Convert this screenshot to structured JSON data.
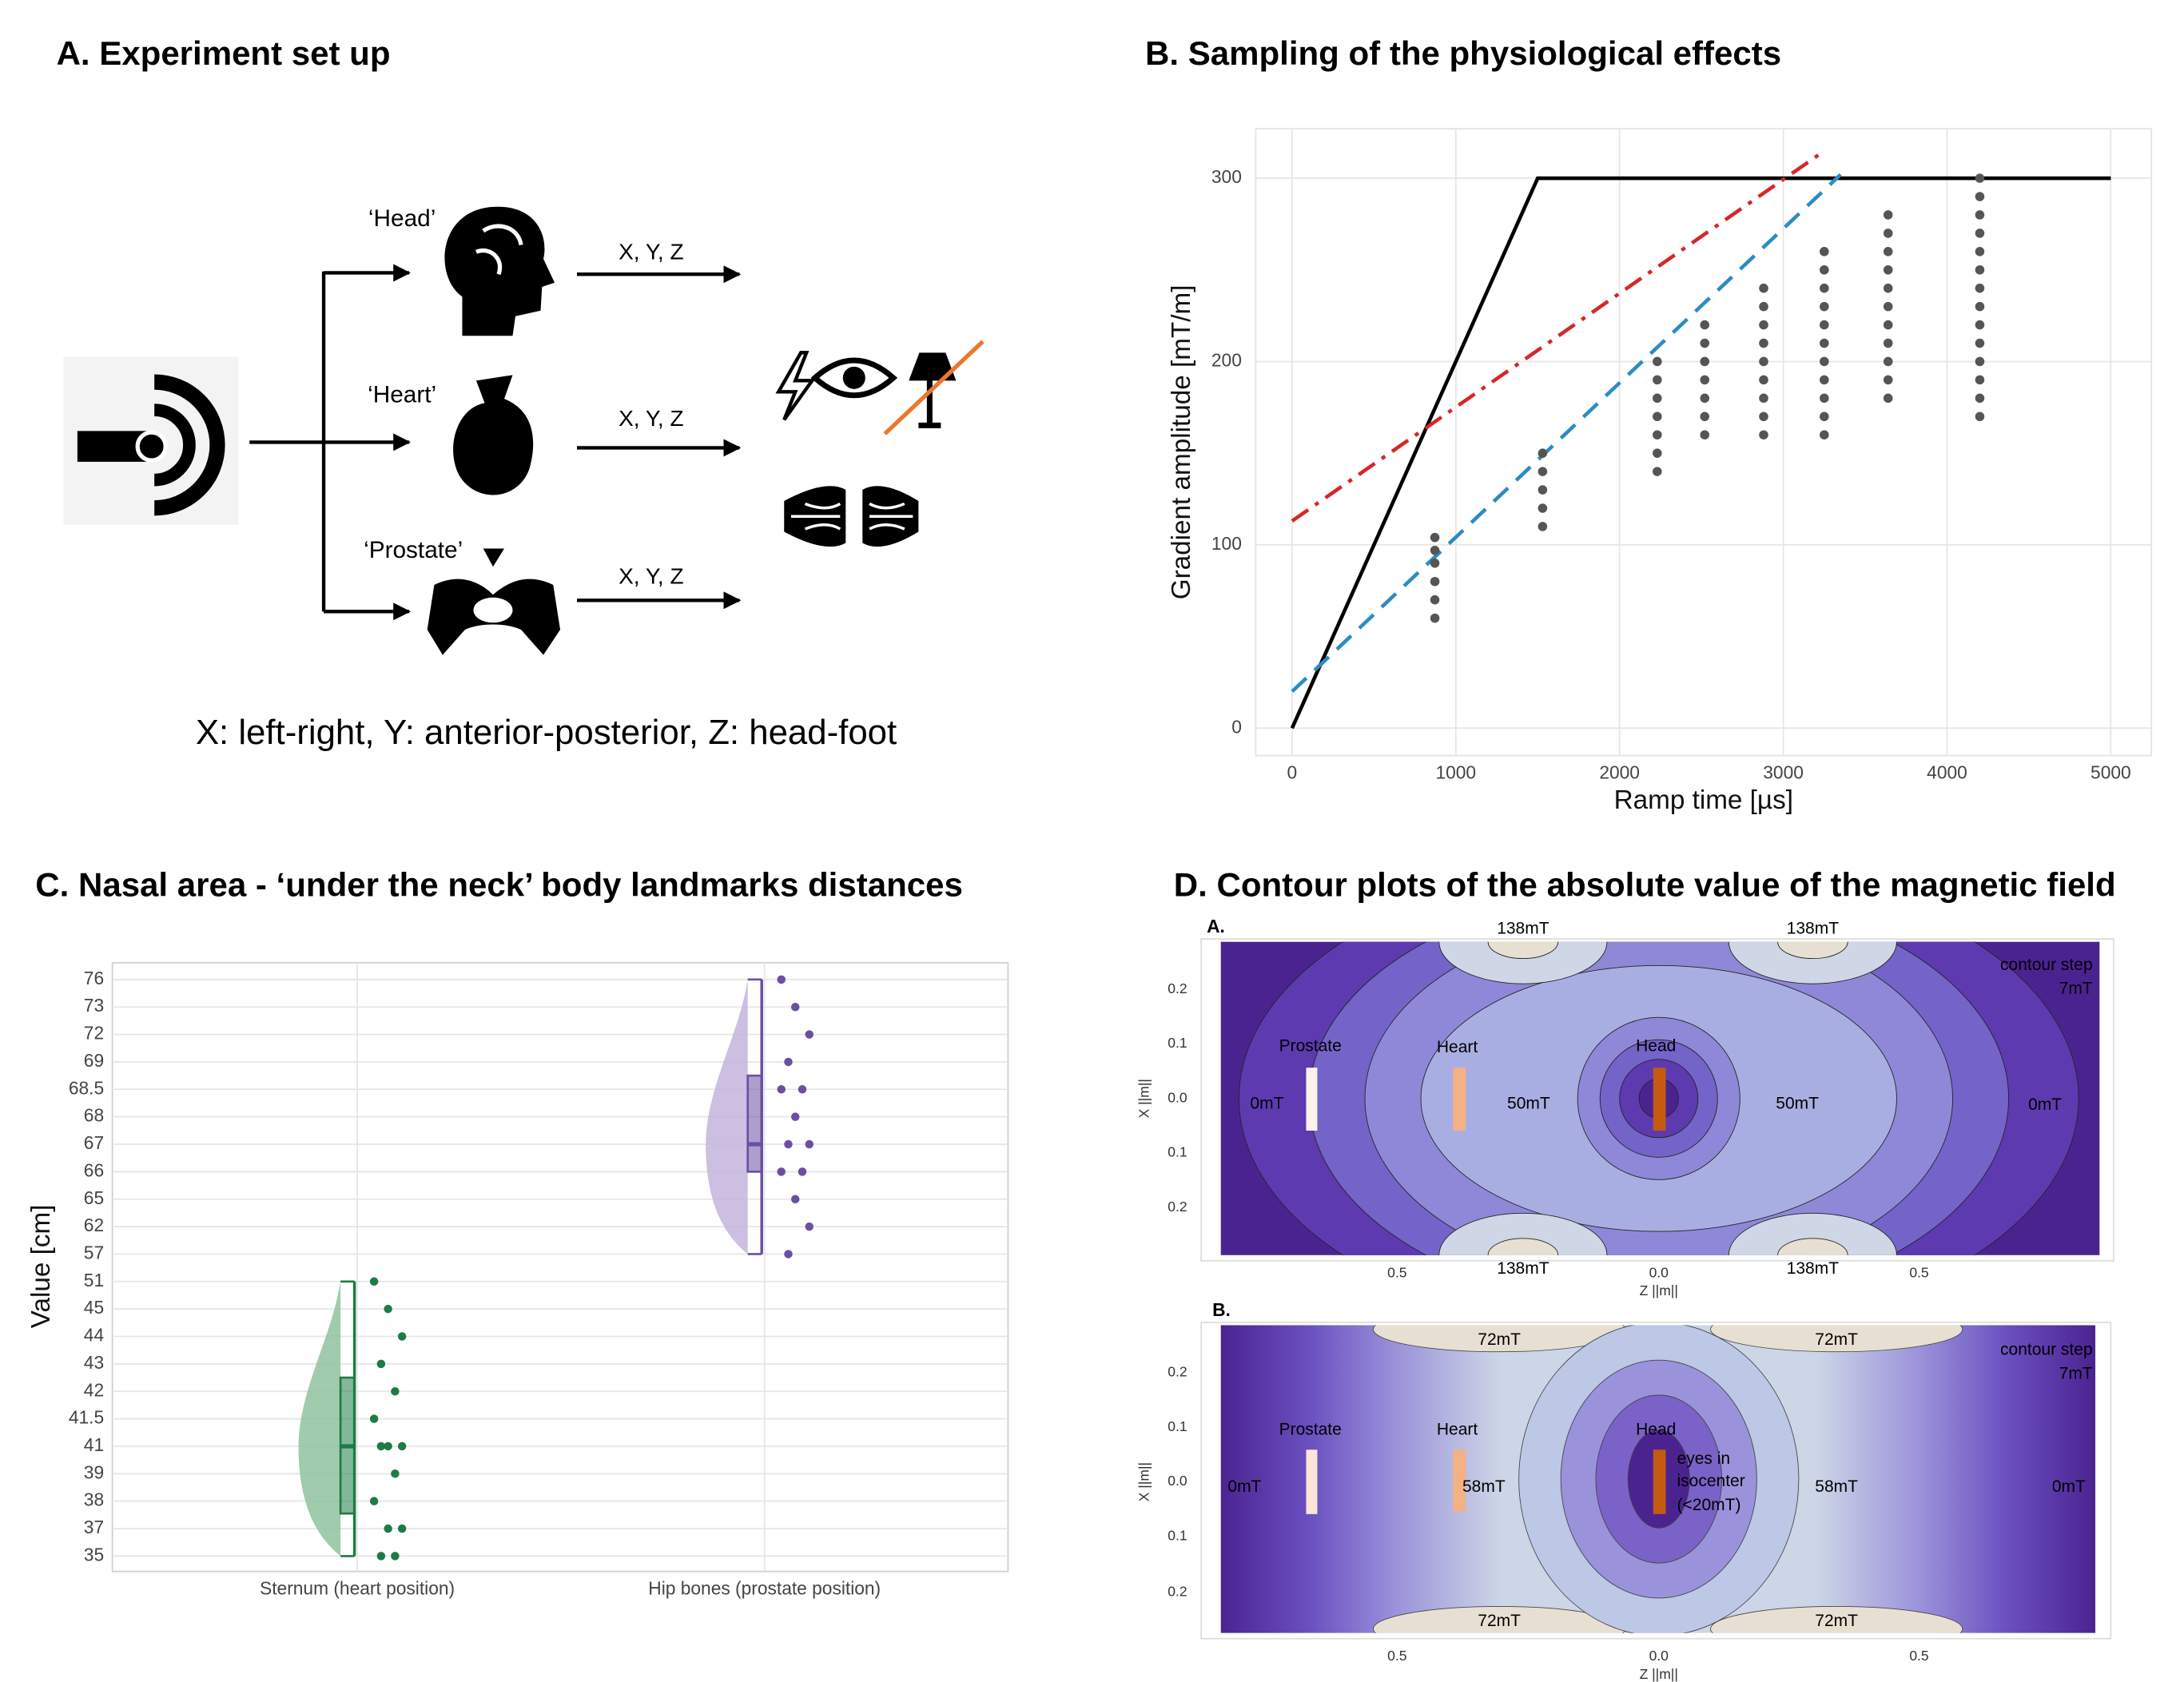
{
  "panel_a": {
    "title": "A. Experiment set up",
    "regions": [
      "‘Head’",
      "‘Heart’",
      "‘Prostate’"
    ],
    "directions": [
      "X, Y, Z",
      "X, Y, Z",
      "X, Y, Z"
    ],
    "legend": "X: left-right, Y: anterior-posterior, Z: head-foot"
  },
  "chart_data": [
    {
      "type": "line",
      "title": "B. Sampling of the physiological effects",
      "x_label": "Ramp time [µs]",
      "y_label": "Gradient amplitude [mT/m]",
      "xlim": [
        -222,
        5248
      ],
      "ylim": [
        -15,
        327
      ],
      "xticks": [
        0,
        1000,
        2000,
        3000,
        4000,
        5000
      ],
      "yticks": [
        0,
        100,
        200,
        300
      ],
      "grid": true,
      "series": [
        {
          "style": "solid",
          "color": "#000000",
          "x": [
            0,
            1500,
            5000
          ],
          "values": [
            0,
            300,
            300
          ]
        },
        {
          "style": "dashdot",
          "color": "#d62728",
          "x": [
            0,
            3220
          ],
          "values": [
            113,
            313
          ]
        },
        {
          "style": "dashed",
          "color": "#2b8cc4",
          "x": [
            0,
            3350
          ],
          "values": [
            20,
            302
          ]
        },
        {
          "style": "points",
          "color": "#555555",
          "x": [
            872,
            872,
            872,
            872,
            872,
            872,
            1530,
            1530,
            1530,
            1530,
            1530,
            2230,
            2230,
            2230,
            2230,
            2230,
            2230,
            2230,
            2520,
            2520,
            2520,
            2520,
            2520,
            2520,
            2520,
            2880,
            2880,
            2880,
            2880,
            2880,
            2880,
            2880,
            2880,
            2880,
            3250,
            3250,
            3250,
            3250,
            3250,
            3250,
            3250,
            3250,
            3250,
            3250,
            3250,
            3640,
            3640,
            3640,
            3640,
            3640,
            3640,
            3640,
            3640,
            3640,
            3640,
            3640,
            4200,
            4200,
            4200,
            4200,
            4200,
            4200,
            4200,
            4200,
            4200,
            4200,
            4200,
            4200,
            4200,
            4200
          ],
          "values": [
            60,
            70,
            80,
            90,
            97,
            104,
            110,
            120,
            130,
            140,
            150,
            140,
            150,
            160,
            170,
            180,
            190,
            200,
            160,
            170,
            180,
            190,
            200,
            210,
            220,
            160,
            170,
            180,
            190,
            200,
            210,
            220,
            230,
            240,
            160,
            170,
            180,
            190,
            200,
            210,
            220,
            230,
            240,
            250,
            260,
            180,
            190,
            200,
            210,
            220,
            230,
            240,
            250,
            260,
            270,
            280,
            170,
            180,
            190,
            200,
            210,
            220,
            230,
            240,
            250,
            260,
            270,
            280,
            290,
            300
          ]
        }
      ]
    },
    {
      "type": "raincloud",
      "title": "C. Nasal area - ‘under the neck’ body landmarks distances",
      "y_label": "Value [cm]",
      "y_categories": [
        "76",
        "73",
        "72",
        "69",
        "68.5",
        "68",
        "67",
        "66",
        "65",
        "62",
        "57",
        "51",
        "45",
        "44",
        "43",
        "42",
        "41.5",
        "41",
        "39",
        "38",
        "37",
        "35"
      ],
      "grid": true,
      "groups": [
        {
          "label": "Sternum (heart position)",
          "color": "#1e7b45",
          "fill": "#8fc29d",
          "values": [
            51,
            45,
            44,
            43,
            42,
            41.5,
            41,
            41,
            41,
            39,
            38,
            37,
            37,
            35,
            35
          ],
          "box": {
            "min": 35,
            "q1": 37.55,
            "median": 41,
            "q3": 42.5,
            "max": 51
          }
        },
        {
          "label": "Hip bones (prostate position)",
          "color": "#6a4fa3",
          "fill": "#c3b4dd",
          "values": [
            76,
            73,
            72,
            69,
            68.5,
            68.5,
            68,
            67,
            67,
            66,
            66,
            65,
            62,
            57
          ],
          "box": {
            "min": 57,
            "q1": 66,
            "median": 67,
            "q3": 68.75,
            "max": 76
          }
        }
      ]
    }
  ],
  "panel_d": {
    "title": "D. Contour plots of the absolute value of the magnetic field",
    "plots": [
      {
        "label": "A.",
        "y_label": "X ||m||",
        "x_label": "Z ||m||",
        "y_ticks": [
          "0.2",
          "0.1",
          "0.0",
          "0.1",
          "0.2"
        ],
        "x_ticks": [
          "0.5",
          "0.0",
          "0.5"
        ],
        "annotations": [
          "138mT",
          "138mT",
          "138mT",
          "138mT",
          "contour step",
          "7mT",
          "Prostate",
          "Heart",
          "Head",
          "0mT",
          "50mT",
          "50mT",
          "0mT"
        ]
      },
      {
        "label": "B.",
        "y_label": "X ||m||",
        "x_label": "Z ||m||",
        "y_ticks": [
          "0.2",
          "0.1",
          "0.0",
          "0.1",
          "0.2"
        ],
        "x_ticks": [
          "0.5",
          "0.0",
          "0.5"
        ],
        "annotations": [
          "72mT",
          "72mT",
          "72mT",
          "72mT",
          "contour step",
          "7mT",
          "Prostate",
          "Heart",
          "Head",
          "eyes in",
          "isocenter",
          "(<20mT)",
          "0mT",
          "58mT",
          "58mT",
          "0mT"
        ]
      }
    ]
  }
}
